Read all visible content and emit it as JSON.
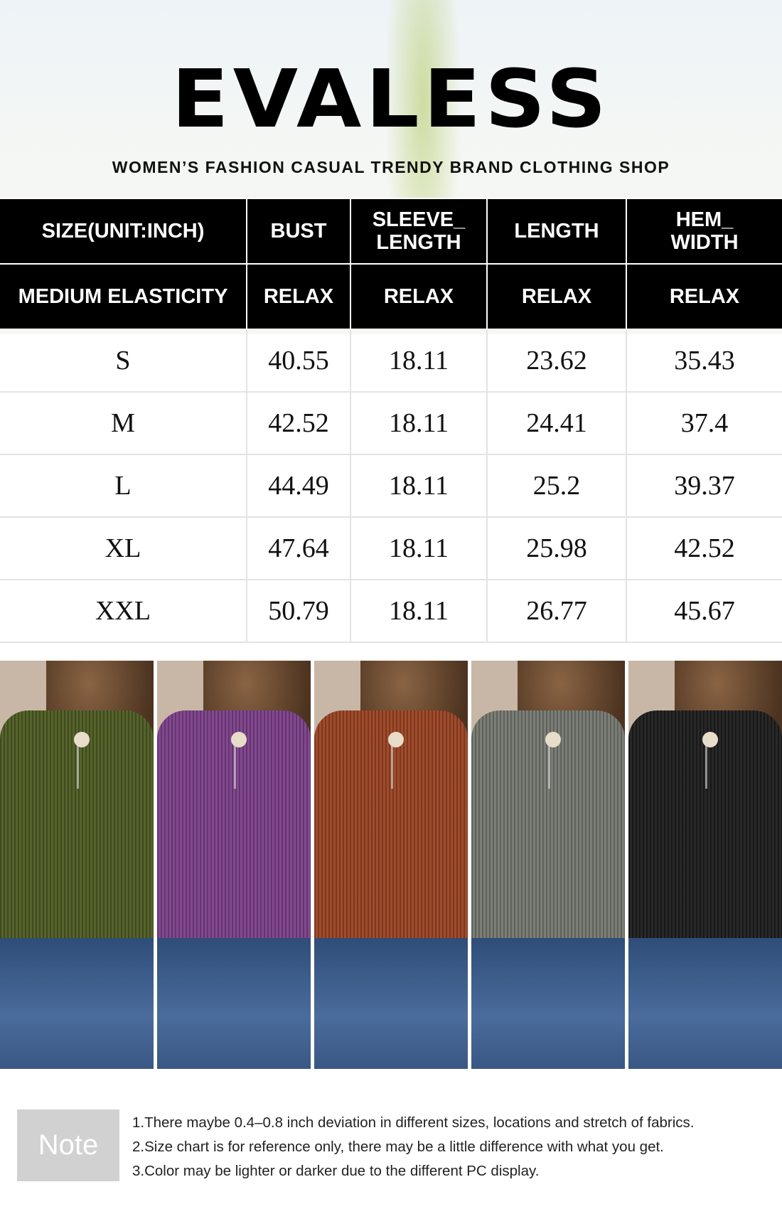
{
  "brand": "EVALESS",
  "tagline": "WOMEN’S FASHION CASUAL TRENDY BRAND CLOTHING SHOP",
  "table": {
    "headers": [
      "SIZE(UNIT:INCH)",
      "BUST",
      "SLEEVE_ LENGTH",
      "LENGTH",
      "HEM_ WIDTH"
    ],
    "subheaders": [
      "MEDIUM ELASTICITY",
      "RELAX",
      "RELAX",
      "RELAX",
      "RELAX"
    ],
    "rows": [
      [
        "S",
        "40.55",
        "18.11",
        "23.62",
        "35.43"
      ],
      [
        "M",
        "42.52",
        "18.11",
        "24.41",
        "37.4"
      ],
      [
        "L",
        "44.49",
        "18.11",
        "25.2",
        "39.37"
      ],
      [
        "XL",
        "47.64",
        "18.11",
        "25.98",
        "42.52"
      ],
      [
        "XXL",
        "50.79",
        "18.11",
        "26.77",
        "45.67"
      ]
    ]
  },
  "colors": [
    {
      "name": "green",
      "hex": "#4d5b22"
    },
    {
      "name": "purple",
      "hex": "#7b3f88"
    },
    {
      "name": "rust",
      "hex": "#9a4322"
    },
    {
      "name": "gray",
      "hex": "#74776f"
    },
    {
      "name": "black",
      "hex": "#1d1d1d"
    }
  ],
  "note": {
    "label": "Note",
    "lines": [
      "1.There maybe 0.4–0.8 inch deviation in different sizes, locations and  stretch of fabrics.",
      "2.Size chart is for reference only, there may be a little difference with what you get.",
      "3.Color may be lighter or darker due to the different PC display."
    ]
  }
}
